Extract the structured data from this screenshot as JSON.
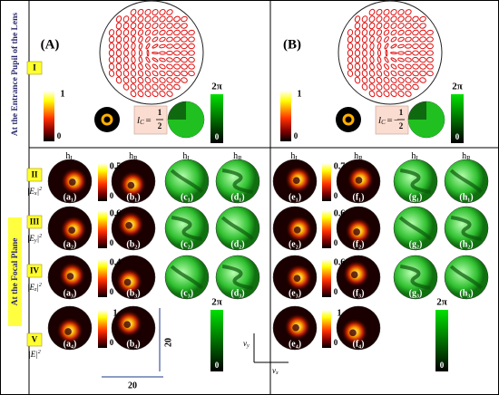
{
  "side_labels": {
    "top": "At the Entrance Pupil of the Lens",
    "bottom": "At the Focal Plane"
  },
  "row_labels": [
    {
      "roman": "II",
      "pre": "|E",
      "sub": "x",
      "post": "|",
      "sup": "2"
    },
    {
      "roman": "III",
      "pre": "|E",
      "sub": "y",
      "post": "|",
      "sup": "2"
    },
    {
      "roman": "IV",
      "pre": "|E",
      "sub": "z",
      "post": "|",
      "sup": "2"
    },
    {
      "roman": "V",
      "pre": "|E|",
      "sub": "",
      "post": "",
      "sup": "2"
    }
  ],
  "top_row_label": "I",
  "panels": [
    {
      "label": "(A)",
      "intensity_bar": {
        "max": "1",
        "min": "0"
      },
      "charge": {
        "symbol": "l",
        "sub": "C",
        "eq": "=",
        "sign": "",
        "num": "1",
        "den": "2"
      },
      "phase_bar": {
        "max": "2π",
        "min": "0"
      },
      "columns": [
        {
          "h": "h",
          "sub": "L"
        },
        {
          "h": "h",
          "sub": "R"
        },
        {
          "h": "h",
          "sub": "L"
        },
        {
          "h": "h",
          "sub": "R"
        }
      ],
      "rows": [
        {
          "bar": {
            "max": "0.5",
            "min": "0"
          },
          "labels": [
            "(a₁)",
            "(b₁)",
            "(c₁)",
            "(d₁)"
          ]
        },
        {
          "bar": {
            "max": "0.6",
            "min": "0"
          },
          "labels": [
            "(a₂)",
            "(b₂)",
            "(c₂)",
            "(d₂)"
          ]
        },
        {
          "bar": {
            "max": "0.4",
            "min": "0"
          },
          "labels": [
            "(a₃)",
            "(b₃)",
            "(c₃)",
            "(d₃)"
          ]
        },
        {
          "bar": {
            "max": "1",
            "min": "0"
          },
          "labels": [
            "(a₄)",
            "(b₄)"
          ]
        }
      ],
      "last_phase_bar": {
        "max": "2π",
        "min": "0"
      }
    },
    {
      "label": "(B)",
      "intensity_bar": {
        "max": "1",
        "min": "0"
      },
      "charge": {
        "symbol": "l",
        "sub": "C",
        "eq": "=",
        "sign": "−",
        "num": "1",
        "den": "2"
      },
      "phase_bar": {
        "max": "2π",
        "min": "0"
      },
      "columns": [
        {
          "h": "h",
          "sub": "L"
        },
        {
          "h": "h",
          "sub": "R"
        },
        {
          "h": "h",
          "sub": "L"
        },
        {
          "h": "h",
          "sub": "R"
        }
      ],
      "rows": [
        {
          "bar": {
            "max": "0.7",
            "min": "0"
          },
          "labels": [
            "(e₁)",
            "(f₁)",
            "(g₁)",
            "(h₁)"
          ]
        },
        {
          "bar": {
            "max": "0.6",
            "min": "0"
          },
          "labels": [
            "(e₂)",
            "(f₂)",
            "(g₂)",
            "(h₂)"
          ]
        },
        {
          "bar": {
            "max": "0.6",
            "min": "0"
          },
          "labels": [
            "(e₃)",
            "(f₃)",
            "(g₃)",
            "(h₃)"
          ]
        },
        {
          "bar": {
            "max": "1",
            "min": "0"
          },
          "labels": [
            "(e₄)",
            "(f₄)"
          ]
        }
      ],
      "last_phase_bar": {
        "max": "2π",
        "min": "0"
      }
    }
  ],
  "scale": {
    "vertical": "20",
    "horizontal": "20"
  },
  "axes": {
    "v": "v",
    "y": "y",
    "x": "x"
  }
}
